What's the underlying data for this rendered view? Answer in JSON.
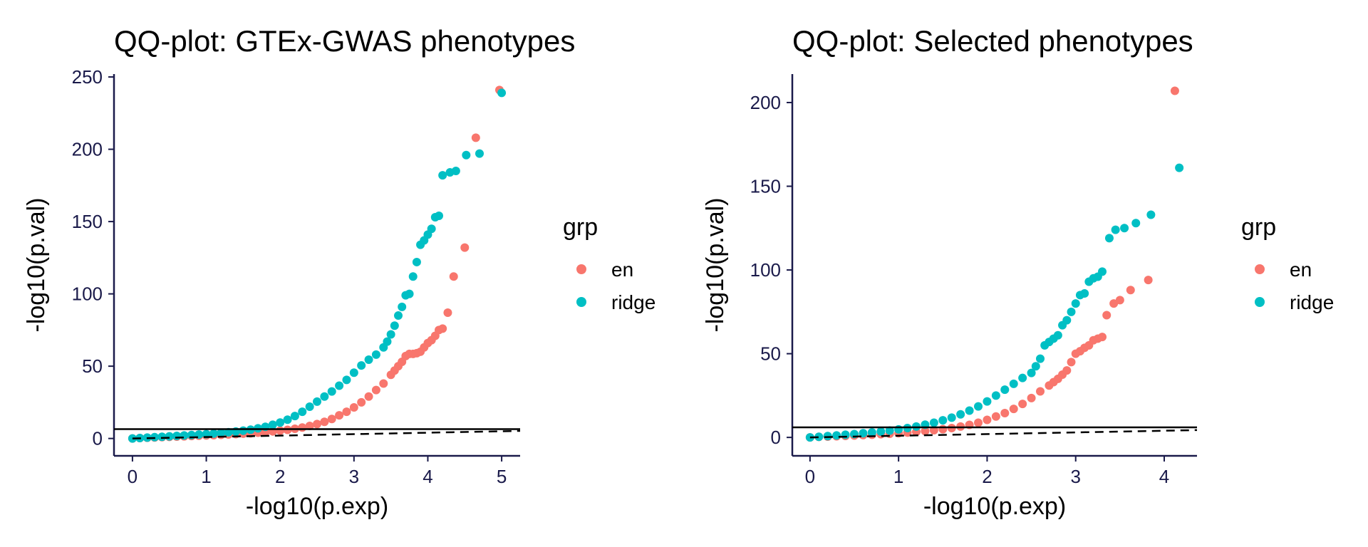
{
  "chart_data": [
    {
      "type": "scatter",
      "title": "QQ-plot: GTEx-GWAS phenotypes",
      "xlabel": "-log10(p.exp)",
      "ylabel": "-log10(p.val)",
      "xlim": [
        -0.25,
        5.25
      ],
      "ylim": [
        -12,
        252
      ],
      "xticks": [
        0,
        1,
        2,
        3,
        4,
        5
      ],
      "yticks": [
        0,
        50,
        100,
        150,
        200,
        250
      ],
      "grid": false,
      "hline": 6.5,
      "diagonal": {
        "x": [
          0,
          5.25
        ],
        "y": [
          0,
          5.25
        ],
        "style": "dashed"
      },
      "legend": {
        "title": "grp",
        "position": "right"
      },
      "series": [
        {
          "name": "en",
          "color": "#F8766D",
          "x": [
            0.0,
            0.1,
            0.2,
            0.3,
            0.4,
            0.5,
            0.6,
            0.7,
            0.8,
            0.9,
            1.0,
            1.1,
            1.2,
            1.3,
            1.4,
            1.5,
            1.6,
            1.7,
            1.8,
            1.9,
            2.0,
            2.1,
            2.2,
            2.3,
            2.4,
            2.5,
            2.6,
            2.7,
            2.8,
            2.9,
            3.0,
            3.1,
            3.2,
            3.3,
            3.4,
            3.5,
            3.55,
            3.6,
            3.65,
            3.7,
            3.75,
            3.8,
            3.85,
            3.9,
            3.95,
            4.0,
            4.05,
            4.1,
            4.15,
            4.2,
            4.27,
            4.35,
            4.5,
            4.65,
            4.97
          ],
          "y": [
            0.0,
            0.3,
            0.5,
            0.7,
            0.9,
            1.1,
            1.3,
            1.5,
            1.7,
            1.9,
            2.1,
            2.3,
            2.5,
            2.8,
            3.0,
            3.3,
            3.6,
            4.0,
            4.4,
            4.9,
            5.4,
            6.0,
            6.7,
            7.6,
            8.7,
            10.0,
            11.5,
            13.5,
            16.0,
            18.5,
            21.5,
            25.0,
            29.0,
            33.5,
            38.0,
            44.0,
            47.0,
            50.0,
            53.0,
            57.0,
            58.5,
            58.5,
            59.0,
            60.0,
            63.0,
            66.0,
            68.0,
            71.0,
            75.0,
            76.0,
            87.0,
            112.0,
            132.0,
            208.0,
            241.0
          ]
        },
        {
          "name": "ridge",
          "color": "#00BFC4",
          "x": [
            0.0,
            0.1,
            0.2,
            0.3,
            0.4,
            0.5,
            0.6,
            0.7,
            0.8,
            0.9,
            1.0,
            1.1,
            1.2,
            1.3,
            1.4,
            1.5,
            1.6,
            1.7,
            1.8,
            1.9,
            2.0,
            2.1,
            2.2,
            2.3,
            2.4,
            2.5,
            2.6,
            2.7,
            2.8,
            2.9,
            3.0,
            3.1,
            3.2,
            3.3,
            3.4,
            3.45,
            3.5,
            3.55,
            3.6,
            3.65,
            3.7,
            3.75,
            3.8,
            3.85,
            3.9,
            3.95,
            4.0,
            4.05,
            4.1,
            4.15,
            4.2,
            4.3,
            4.38,
            4.52,
            4.7,
            5.0
          ],
          "y": [
            0.0,
            0.3,
            0.6,
            0.9,
            1.2,
            1.5,
            1.8,
            2.1,
            2.4,
            2.7,
            3.0,
            3.4,
            3.8,
            4.3,
            4.8,
            5.4,
            6.1,
            7.0,
            8.1,
            9.5,
            11.0,
            13.0,
            15.5,
            18.5,
            22.0,
            25.5,
            29.0,
            32.5,
            36.5,
            40.5,
            45.5,
            50.5,
            54.5,
            58.0,
            63.0,
            67.0,
            72.0,
            78.0,
            85.0,
            91.0,
            99.0,
            100.0,
            112.0,
            122.0,
            134.0,
            137.0,
            141.0,
            145.0,
            153.0,
            154.0,
            182.0,
            184.0,
            185.0,
            196.0,
            197.0,
            239.0
          ]
        }
      ]
    },
    {
      "type": "scatter",
      "title": "QQ-plot: Selected phenotypes",
      "xlabel": "-log10(p.exp)",
      "ylabel": "-log10(p.val)",
      "xlim": [
        -0.2,
        4.37
      ],
      "ylim": [
        -11,
        217
      ],
      "xticks": [
        0,
        1,
        2,
        3,
        4
      ],
      "yticks": [
        0,
        50,
        100,
        150,
        200
      ],
      "grid": false,
      "hline": 6.0,
      "diagonal": {
        "x": [
          0,
          4.37
        ],
        "y": [
          0,
          4.37
        ],
        "style": "dashed"
      },
      "legend": {
        "title": "grp",
        "position": "right"
      },
      "series": [
        {
          "name": "en",
          "color": "#F8766D",
          "x": [
            0.0,
            0.1,
            0.2,
            0.3,
            0.4,
            0.5,
            0.6,
            0.7,
            0.8,
            0.9,
            1.0,
            1.1,
            1.2,
            1.3,
            1.4,
            1.5,
            1.6,
            1.7,
            1.8,
            1.9,
            2.0,
            2.1,
            2.2,
            2.3,
            2.4,
            2.5,
            2.6,
            2.7,
            2.75,
            2.8,
            2.85,
            2.9,
            2.95,
            3.0,
            3.05,
            3.1,
            3.15,
            3.2,
            3.25,
            3.3,
            3.35,
            3.43,
            3.5,
            3.62,
            3.82,
            4.12
          ],
          "y": [
            0.0,
            0.3,
            0.5,
            0.7,
            0.9,
            1.1,
            1.4,
            1.6,
            1.9,
            2.2,
            2.5,
            2.9,
            3.3,
            3.8,
            4.3,
            4.9,
            5.6,
            6.5,
            7.5,
            8.8,
            10.5,
            12.5,
            14.5,
            17.0,
            20.0,
            23.5,
            27.5,
            31.0,
            33.0,
            35.0,
            37.5,
            40.0,
            45.0,
            50.0,
            51.5,
            53.5,
            55.0,
            58.0,
            59.0,
            60.0,
            73.0,
            80.0,
            82.0,
            88.0,
            94.0,
            207.0
          ]
        },
        {
          "name": "ridge",
          "color": "#00BFC4",
          "x": [
            0.0,
            0.1,
            0.2,
            0.3,
            0.4,
            0.5,
            0.6,
            0.7,
            0.8,
            0.9,
            1.0,
            1.1,
            1.2,
            1.3,
            1.4,
            1.5,
            1.6,
            1.7,
            1.8,
            1.9,
            2.0,
            2.1,
            2.2,
            2.3,
            2.4,
            2.5,
            2.55,
            2.6,
            2.65,
            2.7,
            2.75,
            2.8,
            2.85,
            2.9,
            2.95,
            3.0,
            3.05,
            3.1,
            3.15,
            3.2,
            3.25,
            3.3,
            3.38,
            3.45,
            3.55,
            3.68,
            3.85,
            4.17
          ],
          "y": [
            0.0,
            0.4,
            0.8,
            1.2,
            1.6,
            2.0,
            2.5,
            3.0,
            3.5,
            4.1,
            4.8,
            5.6,
            6.5,
            7.6,
            8.8,
            10.2,
            11.8,
            13.8,
            16.0,
            18.5,
            21.5,
            25.0,
            28.5,
            32.0,
            35.5,
            38.5,
            42.5,
            47.0,
            55.0,
            57.0,
            59.0,
            61.0,
            67.0,
            70.0,
            75.0,
            80.0,
            85.0,
            86.0,
            93.0,
            95.0,
            96.0,
            99.0,
            119.0,
            124.0,
            125.0,
            128.0,
            133.0,
            161.0
          ]
        }
      ]
    }
  ]
}
